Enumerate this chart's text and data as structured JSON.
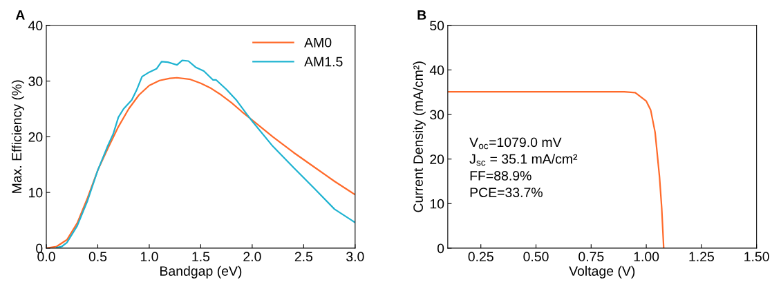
{
  "chart_data": [
    {
      "type": "line",
      "title": "A",
      "xlabel": "Bandgap (eV)",
      "ylabel": "Max. Efficiency (%)",
      "xlim": [
        0,
        3
      ],
      "ylim": [
        0,
        40
      ],
      "xticks": [
        {
          "value": 0,
          "label": "0.0"
        },
        0.5,
        {
          "value": 1,
          "label": "1.0"
        },
        1.5,
        {
          "value": 2,
          "label": "2.0"
        },
        2.5,
        {
          "value": 3,
          "label": "3.0"
        }
      ],
      "yticks": [
        0,
        10,
        20,
        30,
        40
      ],
      "legend": "top right",
      "grid": false,
      "series": [
        {
          "name": "AM0",
          "color": "#ff6a2a",
          "x": [
            0,
            0.1,
            0.2,
            0.3,
            0.4,
            0.5,
            0.6,
            0.7,
            0.8,
            0.9,
            1.0,
            1.1,
            1.2,
            1.27,
            1.4,
            1.5,
            1.6,
            1.7,
            1.8,
            1.9,
            2.0,
            2.2,
            2.4,
            2.6,
            2.8,
            3.0
          ],
          "values": [
            0,
            0.3,
            1.5,
            4.5,
            9,
            14,
            18,
            21.8,
            25,
            27.5,
            29.2,
            30.1,
            30.5,
            30.6,
            30.3,
            29.6,
            28.7,
            27.5,
            26.1,
            24.5,
            23,
            20,
            17.2,
            14.6,
            12,
            9.6
          ]
        },
        {
          "name": "AM1.5",
          "color": "#1fb3d1",
          "x": [
            0.1,
            0.15,
            0.2,
            0.3,
            0.4,
            0.5,
            0.6,
            0.65,
            0.7,
            0.75,
            0.83,
            0.88,
            0.93,
            1.0,
            1.07,
            1.12,
            1.18,
            1.27,
            1.32,
            1.38,
            1.45,
            1.53,
            1.62,
            1.65,
            1.75,
            1.85,
            1.95,
            2.0,
            2.2,
            2.4,
            2.6,
            2.8,
            3.0
          ],
          "values": [
            0.1,
            0.3,
            1.0,
            4,
            8.5,
            14,
            18.5,
            20.5,
            23.5,
            25,
            26.6,
            28.5,
            30.8,
            31.6,
            32.2,
            33.5,
            33.4,
            32.9,
            33.7,
            33.6,
            32.5,
            31.8,
            30.2,
            30.2,
            28.5,
            26.5,
            24,
            22.8,
            18.3,
            14.5,
            10.8,
            7,
            4.6
          ]
        }
      ]
    },
    {
      "type": "line",
      "title": "B",
      "xlabel": "Voltage (V)",
      "ylabel": "Current Density (mA/cm²)",
      "xlim": [
        0.1,
        1.5
      ],
      "ylim": [
        0,
        50
      ],
      "xticks": [
        {
          "value": 0.25,
          "label": "0.25"
        },
        {
          "value": 0.5,
          "label": "0.50"
        },
        {
          "value": 0.75,
          "label": "0.75"
        },
        {
          "value": 1,
          "label": "1.00"
        },
        {
          "value": 1.25,
          "label": "1.25"
        },
        {
          "value": 1.5,
          "label": "1.50"
        }
      ],
      "yticks": [
        0,
        10,
        20,
        30,
        40,
        50
      ],
      "grid": false,
      "annotations": [
        "V$_{oc}$=1079.0 mV",
        "J$_{sc}$ = 35.1 mA/cm²",
        "FF=88.9%",
        "PCE=33.7%"
      ],
      "series": [
        {
          "color": "#ff6a2a",
          "x": [
            0.1,
            0.5,
            0.9,
            0.95,
            1.0,
            1.02,
            1.04,
            1.06,
            1.07,
            1.079
          ],
          "values": [
            35.1,
            35.1,
            35.1,
            34.9,
            33,
            31,
            26,
            16,
            9,
            0
          ]
        }
      ]
    }
  ]
}
